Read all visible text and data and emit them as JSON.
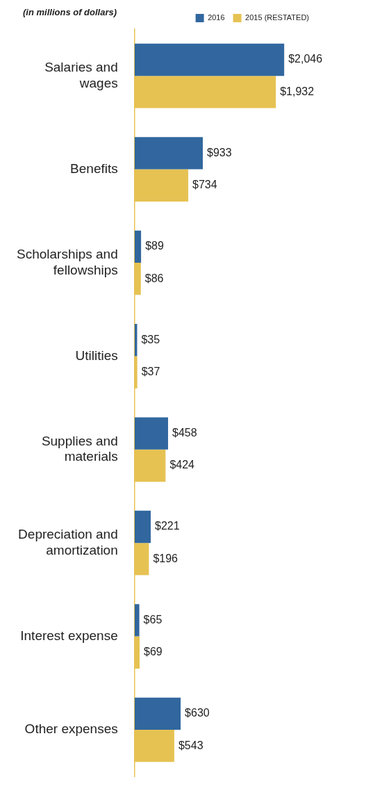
{
  "chart_data": {
    "type": "bar",
    "orientation": "horizontal",
    "title": "(in millions of dollars)",
    "categories": [
      "Salaries and wages",
      "Benefits",
      "Scholarships and fellowships",
      "Utilities",
      "Supplies and materials",
      "Depreciation and amortization",
      "Interest expense",
      "Other expenses"
    ],
    "series": [
      {
        "name": "2016",
        "color": "#31679e",
        "values": [
          2046,
          933,
          89,
          35,
          458,
          221,
          65,
          630
        ],
        "value_labels": [
          "$2,046",
          "$933",
          "$89",
          "$35",
          "$458",
          "$221",
          "$65",
          "$630"
        ]
      },
      {
        "name": "2015 (RESTATED)",
        "color": "#e6c253",
        "values": [
          1932,
          734,
          86,
          37,
          424,
          196,
          69,
          543
        ],
        "value_labels": [
          "$1,932",
          "$734",
          "$86",
          "$37",
          "$424",
          "$196",
          "$69",
          "$543"
        ]
      }
    ],
    "legend": "top right"
  }
}
